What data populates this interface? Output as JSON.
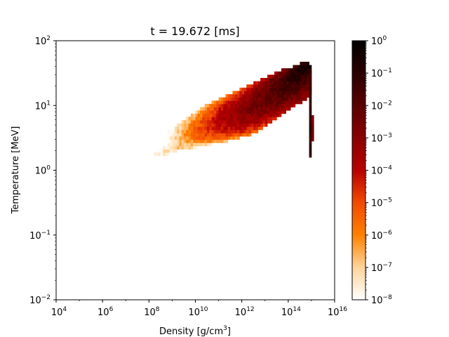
{
  "chart_data": {
    "type": "heatmap",
    "title": "t = 19.672 [ms]",
    "xlabel": "Density [g/cm",
    "xlabel_sup": "3",
    "xlabel_end": "]",
    "ylabel": "Temperature [MeV]",
    "x_scale": "log",
    "y_scale": "log",
    "xlim": [
      10000,
      10000000000000000
    ],
    "ylim": [
      0.01,
      100
    ],
    "x_ticks": [
      {
        "base": "10",
        "exp": "4"
      },
      {
        "base": "10",
        "exp": "6"
      },
      {
        "base": "10",
        "exp": "8"
      },
      {
        "base": "10",
        "exp": "10"
      },
      {
        "base": "10",
        "exp": "12"
      },
      {
        "base": "10",
        "exp": "14"
      },
      {
        "base": "10",
        "exp": "16"
      }
    ],
    "y_ticks": [
      {
        "base": "10",
        "exp": "−2"
      },
      {
        "base": "10",
        "exp": "−1"
      },
      {
        "base": "10",
        "exp": "0"
      },
      {
        "base": "10",
        "exp": "1"
      },
      {
        "base": "10",
        "exp": "2"
      }
    ],
    "colorbar": {
      "scale": "log",
      "range": [
        1e-08,
        1
      ],
      "colormap": "gist_heat_r",
      "ticks": [
        {
          "base": "10",
          "exp": "−8"
        },
        {
          "base": "10",
          "exp": "−7"
        },
        {
          "base": "10",
          "exp": "−6"
        },
        {
          "base": "10",
          "exp": "−5"
        },
        {
          "base": "10",
          "exp": "−4"
        },
        {
          "base": "10",
          "exp": "−3"
        },
        {
          "base": "10",
          "exp": "−2"
        },
        {
          "base": "10",
          "exp": "−1"
        },
        {
          "base": "10",
          "exp": "0"
        }
      ]
    },
    "grid": false,
    "bin_width_dex_x": 0.1,
    "bin_height_dex_y": 0.05,
    "distribution": {
      "description_rows": "each row: [log10(temperature) center, log10(density) left edge of band, log10(density) right edge of band, log10(peak weight)]",
      "rows": [
        [
          0.25,
          7.9,
          8.9,
          -7.6
        ],
        [
          0.3,
          7.9,
          9.3,
          -7.3
        ],
        [
          0.35,
          8.0,
          10.1,
          -6.9
        ],
        [
          0.4,
          8.1,
          10.7,
          -6.6
        ],
        [
          0.45,
          8.3,
          11.4,
          -6.0
        ],
        [
          0.5,
          8.4,
          11.9,
          -5.3
        ],
        [
          0.55,
          8.6,
          12.4,
          -4.8
        ],
        [
          0.6,
          8.8,
          12.7,
          -4.3
        ],
        [
          0.65,
          9.0,
          12.9,
          -4.0
        ],
        [
          0.7,
          9.2,
          13.1,
          -3.7
        ],
        [
          0.75,
          9.4,
          13.3,
          -3.4
        ],
        [
          0.8,
          9.6,
          13.5,
          -3.2
        ],
        [
          0.85,
          9.8,
          13.7,
          -3.0
        ],
        [
          0.9,
          10.0,
          13.9,
          -2.8
        ],
        [
          0.95,
          10.2,
          14.1,
          -2.6
        ],
        [
          1.0,
          10.4,
          14.3,
          -2.4
        ],
        [
          1.05,
          10.7,
          14.6,
          -2.3
        ],
        [
          1.1,
          11.0,
          14.8,
          -2.2
        ],
        [
          1.15,
          11.3,
          14.9,
          -2.0
        ],
        [
          1.2,
          11.6,
          15.0,
          -1.8
        ],
        [
          1.25,
          11.9,
          15.0,
          -1.6
        ],
        [
          1.3,
          12.2,
          15.0,
          -1.4
        ],
        [
          1.35,
          12.5,
          15.0,
          -1.2
        ],
        [
          1.4,
          12.8,
          15.0,
          -1.0
        ],
        [
          1.45,
          13.1,
          15.0,
          -0.9
        ],
        [
          1.5,
          13.4,
          15.0,
          -0.8
        ],
        [
          1.55,
          13.7,
          15.0,
          -0.6
        ],
        [
          1.6,
          14.2,
          15.0,
          -0.4
        ],
        [
          1.65,
          14.5,
          14.9,
          -0.5
        ]
      ]
    }
  }
}
